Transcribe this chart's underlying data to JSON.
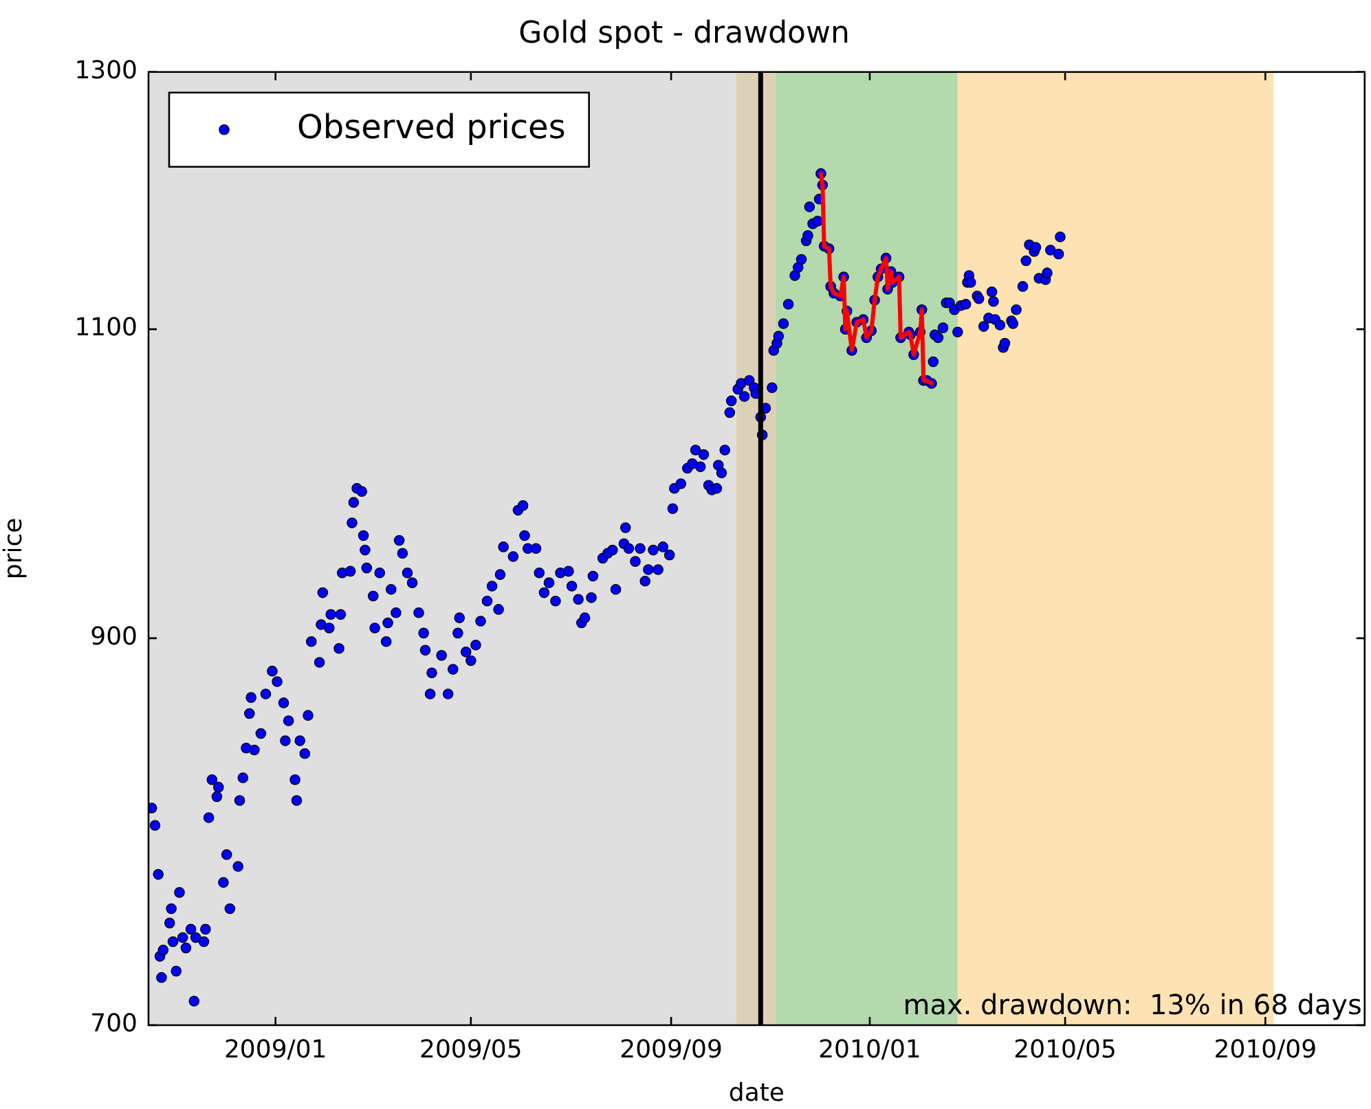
{
  "chart_data": {
    "type": "scatter",
    "title": "Gold spot - drawdown",
    "xlabel": "date",
    "ylabel": "price",
    "xlim": [
      "2008-10-15",
      "2010-11-01"
    ],
    "ylim": [
      700,
      1300
    ],
    "log": "y",
    "xticks": [
      {
        "value": "2009-01-01",
        "label": "2009/01"
      },
      {
        "value": "2009-05-01",
        "label": "2009/05"
      },
      {
        "value": "2009-09-01",
        "label": "2009/09"
      },
      {
        "value": "2010-01-01",
        "label": "2010/01"
      },
      {
        "value": "2010-05-01",
        "label": "2010/05"
      },
      {
        "value": "2010-09-01",
        "label": "2010/09"
      }
    ],
    "yticks": [
      700,
      900,
      1100,
      1300
    ],
    "grid": false,
    "legend": "top left",
    "bands": [
      {
        "axis": "x",
        "from": "2008-10-15",
        "to": "2009-10-11",
        "color": "#dfdfdf"
      },
      {
        "axis": "x",
        "from": "2009-10-11",
        "to": "2009-11-04",
        "color": "#ddd0b9"
      },
      {
        "axis": "x",
        "from": "2009-11-04",
        "to": "2010-02-24",
        "color": "#b3d9ad"
      },
      {
        "axis": "x",
        "from": "2010-02-24",
        "to": "2010-09-06",
        "color": "#fde3b3"
      }
    ],
    "ref_lines": [
      {
        "axis": "x",
        "value": "2009-10-26",
        "color": "#000000"
      }
    ],
    "annotations": [
      "max. drawdown:  13% in 68 days"
    ],
    "series": [
      {
        "type": "scatter",
        "name": "Observed prices",
        "color": "#0000ff",
        "marker": "circle",
        "x": [
          "2008-10-17",
          "2008-10-19",
          "2008-10-21",
          "2008-10-22",
          "2008-10-23",
          "2008-10-24",
          "2008-10-28",
          "2008-10-29",
          "2008-10-30",
          "2008-11-01",
          "2008-11-03",
          "2008-11-05",
          "2008-11-07",
          "2008-11-10",
          "2008-11-12",
          "2008-11-13",
          "2008-11-18",
          "2008-11-19",
          "2008-11-21",
          "2008-11-23",
          "2008-11-26",
          "2008-11-27",
          "2008-11-30",
          "2008-12-02",
          "2008-12-04",
          "2008-12-09",
          "2008-12-10",
          "2008-12-12",
          "2008-12-14",
          "2008-12-16",
          "2008-12-17",
          "2008-12-19",
          "2008-12-23",
          "2008-12-26",
          "2008-12-30",
          "2009-01-02",
          "2009-01-06",
          "2009-01-07",
          "2009-01-09",
          "2009-01-13",
          "2009-01-14",
          "2009-01-16",
          "2009-01-19",
          "2009-01-21",
          "2009-01-23",
          "2009-01-28",
          "2009-01-29",
          "2009-01-30",
          "2009-02-03",
          "2009-02-04",
          "2009-02-09",
          "2009-02-10",
          "2009-02-11",
          "2009-02-16",
          "2009-02-17",
          "2009-02-18",
          "2009-02-20",
          "2009-02-23",
          "2009-02-24",
          "2009-02-25",
          "2009-02-26",
          "2009-03-02",
          "2009-03-03",
          "2009-03-06",
          "2009-03-10",
          "2009-03-11",
          "2009-03-13",
          "2009-03-16",
          "2009-03-18",
          "2009-03-20",
          "2009-03-23",
          "2009-03-26",
          "2009-03-30",
          "2009-04-02",
          "2009-04-03",
          "2009-04-06",
          "2009-04-07",
          "2009-04-13",
          "2009-04-17",
          "2009-04-20",
          "2009-04-23",
          "2009-04-24",
          "2009-04-28",
          "2009-05-01",
          "2009-05-04",
          "2009-05-07",
          "2009-05-11",
          "2009-05-14",
          "2009-05-18",
          "2009-05-19",
          "2009-05-21",
          "2009-05-27",
          "2009-05-30",
          "2009-06-02",
          "2009-06-03",
          "2009-06-05",
          "2009-06-10",
          "2009-06-12",
          "2009-06-15",
          "2009-06-18",
          "2009-06-22",
          "2009-06-25",
          "2009-06-30",
          "2009-07-02",
          "2009-07-06",
          "2009-07-08",
          "2009-07-10",
          "2009-07-14",
          "2009-07-15",
          "2009-07-21",
          "2009-07-24",
          "2009-07-27",
          "2009-07-29",
          "2009-08-03",
          "2009-08-04",
          "2009-08-06",
          "2009-08-10",
          "2009-08-13",
          "2009-08-16",
          "2009-08-18",
          "2009-08-21",
          "2009-08-24",
          "2009-08-27",
          "2009-08-31",
          "2009-09-02",
          "2009-09-03",
          "2009-09-07",
          "2009-09-11",
          "2009-09-14",
          "2009-09-16",
          "2009-09-19",
          "2009-09-21",
          "2009-09-24",
          "2009-09-26",
          "2009-09-29",
          "2009-09-30",
          "2009-10-02",
          "2009-10-04",
          "2009-10-07",
          "2009-10-08",
          "2009-10-12",
          "2009-10-14",
          "2009-10-16",
          "2009-10-19",
          "2009-10-22",
          "2009-10-23",
          "2009-10-26",
          "2009-10-27",
          "2009-10-29",
          "2009-11-02",
          "2009-11-03",
          "2009-11-05",
          "2009-11-06",
          "2009-11-09",
          "2009-11-12",
          "2009-11-16",
          "2009-11-18",
          "2009-11-20",
          "2009-11-23",
          "2009-11-24",
          "2009-11-25",
          "2009-11-27",
          "2009-11-30",
          "2009-12-01",
          "2009-12-02",
          "2009-12-03",
          "2009-12-04",
          "2009-12-07",
          "2009-12-08",
          "2009-12-10",
          "2009-12-14",
          "2009-12-16",
          "2009-12-17",
          "2009-12-18",
          "2009-12-21",
          "2009-12-24",
          "2009-12-28",
          "2009-12-30",
          "2010-01-02",
          "2010-01-04",
          "2010-01-06",
          "2010-01-08",
          "2010-01-11",
          "2010-01-12",
          "2010-01-14",
          "2010-01-15",
          "2010-01-19",
          "2010-01-20",
          "2010-01-25",
          "2010-01-26",
          "2010-01-28",
          "2010-02-01",
          "2010-02-02",
          "2010-02-03",
          "2010-02-05",
          "2010-02-08",
          "2010-02-09",
          "2010-02-10",
          "2010-02-12",
          "2010-02-15",
          "2010-02-17",
          "2010-02-19",
          "2010-02-22",
          "2010-02-24",
          "2010-02-26",
          "2010-03-01",
          "2010-03-02",
          "2010-03-03",
          "2010-03-04",
          "2010-03-08",
          "2010-03-09",
          "2010-03-12",
          "2010-03-15",
          "2010-03-17",
          "2010-03-18",
          "2010-03-19",
          "2010-03-22",
          "2010-03-24",
          "2010-03-25",
          "2010-03-29",
          "2010-03-30",
          "2010-04-01",
          "2010-04-05",
          "2010-04-07",
          "2010-04-09",
          "2010-04-12",
          "2010-04-13",
          "2010-04-15",
          "2010-04-19",
          "2010-04-20",
          "2010-04-22",
          "2010-04-27",
          "2010-04-28"
        ],
        "values": [
          806,
          797,
          772,
          732,
          722,
          735,
          748,
          755,
          739,
          725,
          763,
          741,
          736,
          745,
          711,
          741,
          739,
          745,
          801,
          821,
          812,
          817,
          768,
          782,
          755,
          776,
          810,
          822,
          838,
          857,
          866,
          837,
          846,
          868,
          881,
          875,
          863,
          842,
          853,
          821,
          810,
          842,
          835,
          856,
          898,
          886,
          908,
          927,
          906,
          914,
          894,
          914,
          939,
          940,
          970,
          983,
          992,
          990,
          962,
          953,
          942,
          925,
          906,
          939,
          898,
          909,
          929,
          915,
          959,
          951,
          939,
          933,
          915,
          903,
          893,
          868,
          880,
          890,
          868,
          882,
          903,
          912,
          892,
          887,
          896,
          910,
          922,
          931,
          917,
          938,
          955,
          949,
          978,
          981,
          962,
          954,
          954,
          939,
          927,
          933,
          922,
          939,
          940,
          931,
          923,
          909,
          912,
          924,
          937,
          948,
          951,
          953,
          929,
          957,
          967,
          954,
          946,
          954,
          934,
          941,
          953,
          941,
          955,
          950,
          979,
          992,
          995,
          1005,
          1008,
          1017,
          1006,
          1014,
          994,
          991,
          992,
          1007,
          1002,
          1017,
          1042,
          1050,
          1058,
          1062,
          1053,
          1064,
          1059,
          1055,
          1039,
          1027,
          1045,
          1059,
          1085,
          1090,
          1095,
          1104,
          1118,
          1139,
          1145,
          1151,
          1165,
          1169,
          1191,
          1178,
          1180,
          1197,
          1217,
          1208,
          1161,
          1159,
          1131,
          1126,
          1124,
          1138,
          1100,
          1113,
          1085,
          1105,
          1107,
          1094,
          1099,
          1121,
          1138,
          1144,
          1152,
          1129,
          1142,
          1134,
          1138,
          1094,
          1098,
          1096,
          1082,
          1098,
          1114,
          1064,
          1064,
          1062,
          1077,
          1096,
          1094,
          1101,
          1119,
          1119,
          1114,
          1098,
          1117,
          1118,
          1134,
          1139,
          1134,
          1124,
          1122,
          1102,
          1108,
          1127,
          1120,
          1107,
          1103,
          1087,
          1090,
          1106,
          1104,
          1114,
          1131,
          1150,
          1162,
          1157,
          1160,
          1137,
          1136,
          1141,
          1158,
          1155,
          1168
        ]
      },
      {
        "type": "line",
        "color": "#ff0000",
        "marker": "none",
        "x": [
          "2009-12-02",
          "2009-12-03",
          "2009-12-04",
          "2009-12-07",
          "2009-12-08",
          "2009-12-10",
          "2009-12-14",
          "2009-12-16",
          "2009-12-17",
          "2009-12-18",
          "2009-12-21",
          "2009-12-24",
          "2009-12-28",
          "2009-12-30",
          "2010-01-02",
          "2010-01-04",
          "2010-01-06",
          "2010-01-08",
          "2010-01-11",
          "2010-01-12",
          "2010-01-14",
          "2010-01-15",
          "2010-01-19",
          "2010-01-20",
          "2010-01-25",
          "2010-01-26",
          "2010-01-28",
          "2010-02-01",
          "2010-02-02",
          "2010-02-03",
          "2010-02-05",
          "2010-02-08"
        ],
        "values": [
          1217,
          1208,
          1161,
          1159,
          1131,
          1126,
          1124,
          1138,
          1100,
          1113,
          1085,
          1105,
          1107,
          1094,
          1099,
          1121,
          1138,
          1144,
          1152,
          1129,
          1142,
          1134,
          1138,
          1094,
          1098,
          1096,
          1082,
          1098,
          1114,
          1064,
          1064,
          1062
        ]
      }
    ]
  }
}
